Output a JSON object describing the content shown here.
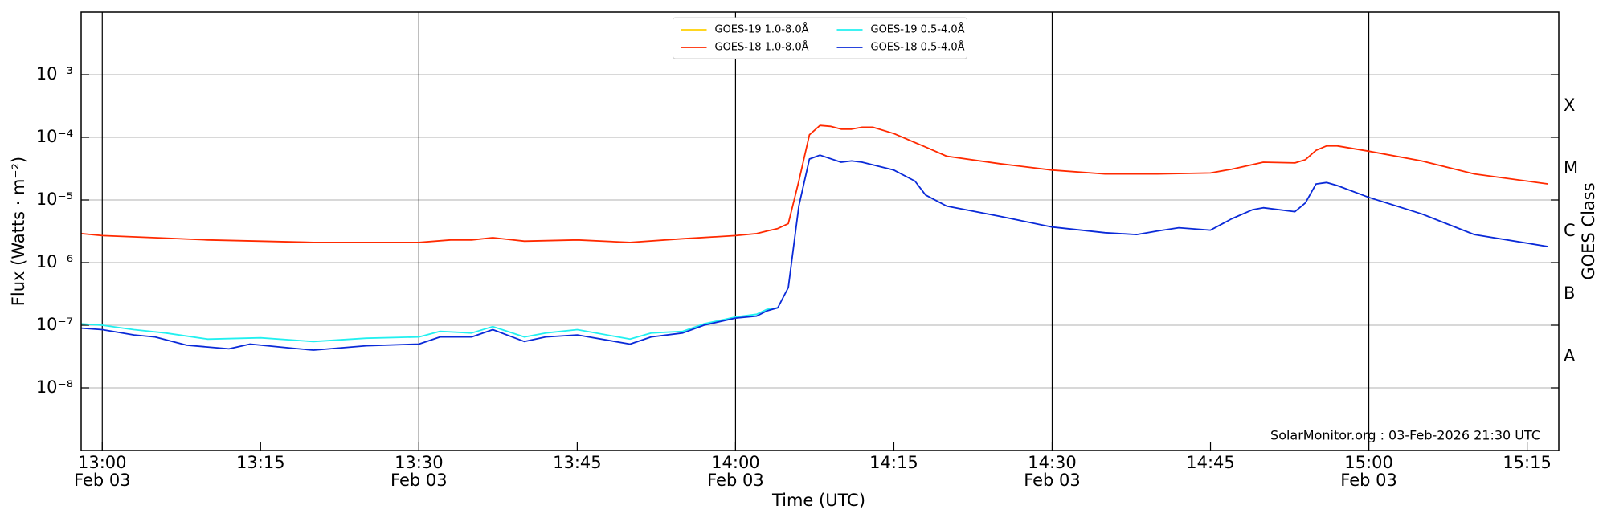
{
  "chart_data": {
    "type": "line",
    "xlabel": "Time (UTC)",
    "ylabel": "Flux (Watts · m⁻²)",
    "y2label": "GOES Class",
    "annotation": "SolarMonitor.org : 03-Feb-2026 21:30 UTC",
    "log_y": true,
    "ygrid": true,
    "xgrid": "major",
    "legend": "upper center",
    "legend_columns": 2,
    "xlim": [
      "12:58",
      "15:18"
    ],
    "ylim": [
      1e-09,
      0.01
    ],
    "yticks": [
      {
        "value": 1e-08,
        "label": "10⁻⁸"
      },
      {
        "value": 1e-07,
        "label": "10⁻⁷"
      },
      {
        "value": 1e-06,
        "label": "10⁻⁶"
      },
      {
        "value": 1e-05,
        "label": "10⁻⁵"
      },
      {
        "value": 0.0001,
        "label": "10⁻⁴"
      },
      {
        "value": 0.001,
        "label": "10⁻³"
      }
    ],
    "xticks": [
      {
        "value": "13:00",
        "label": "13:00",
        "sublabel": "Feb 03"
      },
      "13:15",
      {
        "value": "13:30",
        "label": "13:30",
        "sublabel": "Feb 03"
      },
      "13:45",
      {
        "value": "14:00",
        "label": "14:00",
        "sublabel": "Feb 03"
      },
      "14:15",
      {
        "value": "14:30",
        "label": "14:30",
        "sublabel": "Feb 03"
      },
      "14:45",
      {
        "value": "15:00",
        "label": "15:00",
        "sublabel": "Feb 03"
      },
      "15:15"
    ],
    "y2labels": [
      {
        "label": "A",
        "from": 1e-08,
        "to": 1e-07
      },
      {
        "label": "B",
        "from": 1e-07,
        "to": 1e-06
      },
      {
        "label": "C",
        "from": 1e-06,
        "to": 1e-05
      },
      {
        "label": "M",
        "from": 1e-05,
        "to": 0.0001
      },
      {
        "label": "X",
        "from": 0.0001,
        "to": 0.001
      }
    ],
    "series": [
      {
        "name": "GOES-19 1.0-8.0Å",
        "color": "#ffd000",
        "x": [],
        "values": []
      },
      {
        "name": "GOES-18 1.0-8.0Å",
        "color": "#ff2a00",
        "x": [
          "12:58",
          "13:00",
          "13:05",
          "13:10",
          "13:15",
          "13:20",
          "13:25",
          "13:30",
          "13:33",
          "13:35",
          "13:37",
          "13:40",
          "13:45",
          "13:50",
          "13:55",
          "14:00",
          "14:02",
          "14:03",
          "14:04",
          "14:05",
          "14:06",
          "14:07",
          "14:08",
          "14:09",
          "14:10",
          "14:11",
          "14:12",
          "14:13",
          "14:15",
          "14:18",
          "14:20",
          "14:25",
          "14:30",
          "14:35",
          "14:40",
          "14:45",
          "14:47",
          "14:50",
          "14:53",
          "14:54",
          "14:55",
          "14:56",
          "14:57",
          "15:00",
          "15:05",
          "15:10",
          "15:17"
        ],
        "values": [
          2.9e-06,
          2.7e-06,
          2.5e-06,
          2.3e-06,
          2.2e-06,
          2.1e-06,
          2.1e-06,
          2.1e-06,
          2.3e-06,
          2.3e-06,
          2.5e-06,
          2.2e-06,
          2.3e-06,
          2.1e-06,
          2.4e-06,
          2.7e-06,
          2.9e-06,
          3.2e-06,
          3.5e-06,
          4.2e-06,
          2e-05,
          0.00011,
          0.000155,
          0.00015,
          0.000135,
          0.000135,
          0.000145,
          0.000145,
          0.000115,
          7e-05,
          5e-05,
          3.8e-05,
          3e-05,
          2.6e-05,
          2.6e-05,
          2.7e-05,
          3.1e-05,
          4e-05,
          3.9e-05,
          4.4e-05,
          6.2e-05,
          7.3e-05,
          7.3e-05,
          6e-05,
          4.2e-05,
          2.6e-05,
          1.8e-05
        ]
      },
      {
        "name": "GOES-19 0.5-4.0Å",
        "color": "#22f0f0",
        "x": [
          "12:58",
          "13:00",
          "13:03",
          "13:06",
          "13:10",
          "13:15",
          "13:20",
          "13:25",
          "13:30",
          "13:32",
          "13:35",
          "13:37",
          "13:40",
          "13:42",
          "13:45",
          "13:50",
          "13:52",
          "13:55",
          "13:57",
          "14:00",
          "14:02",
          "14:03",
          "14:04"
        ],
        "values": [
          1.05e-07,
          1e-07,
          8.5e-08,
          7.5e-08,
          6e-08,
          6.3e-08,
          5.5e-08,
          6.2e-08,
          6.5e-08,
          8e-08,
          7.5e-08,
          9.5e-08,
          6.5e-08,
          7.5e-08,
          8.5e-08,
          6e-08,
          7.5e-08,
          8e-08,
          1.05e-07,
          1.35e-07,
          1.5e-07,
          1.8e-07,
          1.9e-07
        ]
      },
      {
        "name": "GOES-18 0.5-4.0Å",
        "color": "#0a2ad8",
        "x": [
          "12:58",
          "13:00",
          "13:03",
          "13:05",
          "13:08",
          "13:12",
          "13:14",
          "13:18",
          "13:20",
          "13:25",
          "13:30",
          "13:32",
          "13:35",
          "13:37",
          "13:40",
          "13:42",
          "13:45",
          "13:50",
          "13:52",
          "13:55",
          "13:57",
          "14:00",
          "14:02",
          "14:03",
          "14:04",
          "14:05",
          "14:06",
          "14:07",
          "14:08",
          "14:10",
          "14:11",
          "14:12",
          "14:15",
          "14:17",
          "14:18",
          "14:20",
          "14:25",
          "14:30",
          "14:35",
          "14:38",
          "14:40",
          "14:42",
          "14:45",
          "14:47",
          "14:49",
          "14:50",
          "14:53",
          "14:54",
          "14:55",
          "14:56",
          "14:57",
          "15:00",
          "15:05",
          "15:10",
          "15:17"
        ],
        "values": [
          9e-08,
          8.5e-08,
          7e-08,
          6.5e-08,
          4.8e-08,
          4.2e-08,
          5e-08,
          4.3e-08,
          4e-08,
          4.7e-08,
          5e-08,
          6.5e-08,
          6.5e-08,
          8.5e-08,
          5.5e-08,
          6.5e-08,
          7e-08,
          5e-08,
          6.5e-08,
          7.5e-08,
          1e-07,
          1.3e-07,
          1.4e-07,
          1.7e-07,
          1.9e-07,
          4e-07,
          8e-06,
          4.5e-05,
          5.2e-05,
          4e-05,
          4.2e-05,
          4e-05,
          3e-05,
          2e-05,
          1.2e-05,
          8e-06,
          5.5e-06,
          3.7e-06,
          3e-06,
          2.8e-06,
          3.2e-06,
          3.6e-06,
          3.3e-06,
          5e-06,
          7e-06,
          7.5e-06,
          6.5e-06,
          9e-06,
          1.8e-05,
          1.9e-05,
          1.7e-05,
          1.1e-05,
          6e-06,
          2.8e-06,
          1.8e-06
        ]
      }
    ]
  }
}
